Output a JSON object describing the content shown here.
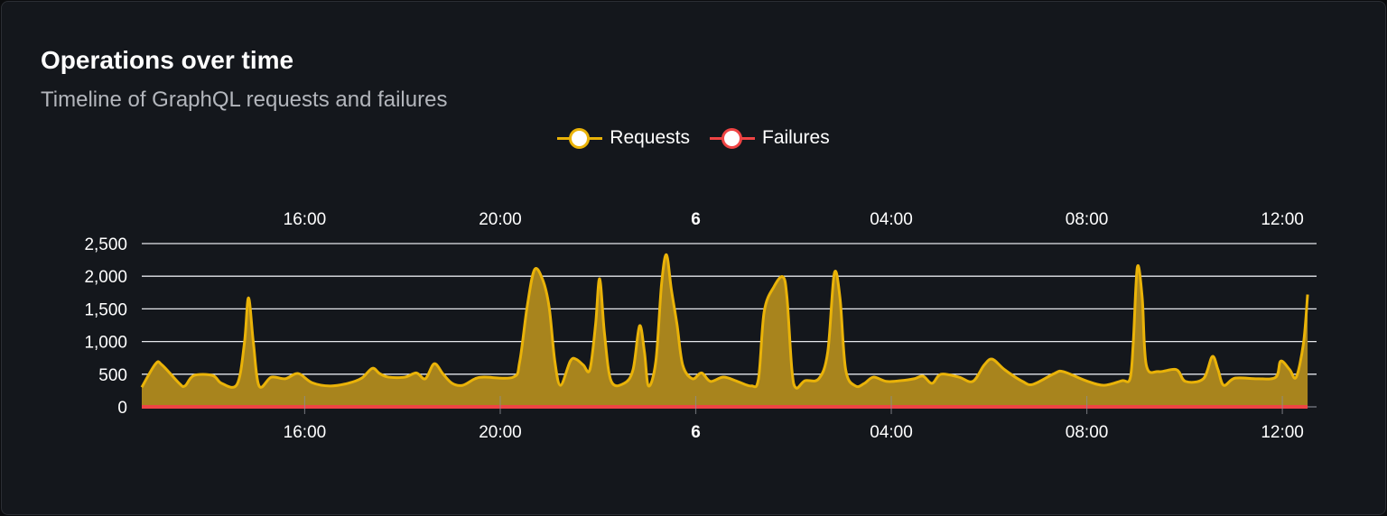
{
  "header": {
    "title": "Operations over time",
    "subtitle": "Timeline of GraphQL requests and failures"
  },
  "chart_data": {
    "type": "area",
    "x_range": [
      "5 12:40",
      "6 12:42"
    ],
    "ylim": [
      0,
      2500
    ],
    "y_ticks": [
      0,
      500,
      1000,
      1500,
      2000,
      2500
    ],
    "y_tick_labels": [
      "0",
      "500",
      "1,000",
      "1,500",
      "2,000",
      "2,500"
    ],
    "x_ticks": [
      {
        "t": "5 16:00",
        "label": "16:00",
        "bold": false
      },
      {
        "t": "5 20:00",
        "label": "20:00",
        "bold": false
      },
      {
        "t": "6 00:00",
        "label": "6",
        "bold": true
      },
      {
        "t": "6 04:00",
        "label": "04:00",
        "bold": false
      },
      {
        "t": "6 08:00",
        "label": "08:00",
        "bold": false
      },
      {
        "t": "6 12:00",
        "label": "12:00",
        "bold": false
      }
    ],
    "grid": true,
    "legend_placement": "top",
    "series": [
      {
        "name": "Requests",
        "color": "#eab308",
        "fill": "#a8841d",
        "points": [
          [
            "5 12:40",
            300
          ],
          [
            "5 12:57",
            660
          ],
          [
            "5 13:05",
            640
          ],
          [
            "5 13:26",
            360
          ],
          [
            "5 13:33",
            320
          ],
          [
            "5 13:44",
            480
          ],
          [
            "5 14:07",
            480
          ],
          [
            "5 14:18",
            360
          ],
          [
            "5 14:37",
            345
          ],
          [
            "5 14:46",
            980
          ],
          [
            "5 14:51",
            1670
          ],
          [
            "5 14:57",
            980
          ],
          [
            "5 15:04",
            320
          ],
          [
            "5 15:19",
            455
          ],
          [
            "5 15:36",
            430
          ],
          [
            "5 15:52",
            510
          ],
          [
            "5 16:09",
            370
          ],
          [
            "5 16:31",
            320
          ],
          [
            "5 16:53",
            360
          ],
          [
            "5 17:10",
            440
          ],
          [
            "5 17:23",
            590
          ],
          [
            "5 17:32",
            510
          ],
          [
            "5 17:43",
            455
          ],
          [
            "5 18:03",
            455
          ],
          [
            "5 18:17",
            520
          ],
          [
            "5 18:28",
            430
          ],
          [
            "5 18:39",
            660
          ],
          [
            "5 18:50",
            500
          ],
          [
            "5 19:01",
            360
          ],
          [
            "5 19:14",
            330
          ],
          [
            "5 19:29",
            430
          ],
          [
            "5 19:40",
            455
          ],
          [
            "5 20:16",
            455
          ],
          [
            "5 20:24",
            700
          ],
          [
            "5 20:33",
            1530
          ],
          [
            "5 20:42",
            2100
          ],
          [
            "5 20:52",
            1950
          ],
          [
            "5 21:00",
            1530
          ],
          [
            "5 21:07",
            700
          ],
          [
            "5 21:14",
            330
          ],
          [
            "5 21:26",
            700
          ],
          [
            "5 21:33",
            730
          ],
          [
            "5 21:42",
            640
          ],
          [
            "5 21:50",
            570
          ],
          [
            "5 21:57",
            1260
          ],
          [
            "5 22:02",
            1960
          ],
          [
            "5 22:08",
            1120
          ],
          [
            "5 22:16",
            400
          ],
          [
            "5 22:32",
            360
          ],
          [
            "5 22:43",
            570
          ],
          [
            "5 22:51",
            1240
          ],
          [
            "5 22:57",
            840
          ],
          [
            "5 23:02",
            320
          ],
          [
            "5 23:11",
            700
          ],
          [
            "5 23:18",
            1880
          ],
          [
            "5 23:24",
            2330
          ],
          [
            "5 23:30",
            1800
          ],
          [
            "5 23:37",
            1260
          ],
          [
            "5 23:44",
            640
          ],
          [
            "5 23:56",
            430
          ],
          [
            "6 00:07",
            520
          ],
          [
            "6 00:18",
            390
          ],
          [
            "6 00:34",
            455
          ],
          [
            "6 00:51",
            390
          ],
          [
            "6 01:08",
            320
          ],
          [
            "6 01:17",
            430
          ],
          [
            "6 01:24",
            1460
          ],
          [
            "6 01:36",
            1840
          ],
          [
            "6 01:47",
            1990
          ],
          [
            "6 01:52",
            1670
          ],
          [
            "6 01:58",
            570
          ],
          [
            "6 02:03",
            290
          ],
          [
            "6 02:14",
            400
          ],
          [
            "6 02:31",
            430
          ],
          [
            "6 02:42",
            840
          ],
          [
            "6 02:50",
            2040
          ],
          [
            "6 02:57",
            1670
          ],
          [
            "6 03:04",
            570
          ],
          [
            "6 03:16",
            320
          ],
          [
            "6 03:27",
            360
          ],
          [
            "6 03:38",
            455
          ],
          [
            "6 03:54",
            390
          ],
          [
            "6 04:11",
            400
          ],
          [
            "6 04:28",
            430
          ],
          [
            "6 04:39",
            470
          ],
          [
            "6 04:50",
            360
          ],
          [
            "6 05:01",
            500
          ],
          [
            "6 05:23",
            455
          ],
          [
            "6 05:40",
            390
          ],
          [
            "6 05:54",
            640
          ],
          [
            "6 06:04",
            730
          ],
          [
            "6 06:19",
            570
          ],
          [
            "6 06:41",
            390
          ],
          [
            "6 06:54",
            345
          ],
          [
            "6 07:20",
            510
          ],
          [
            "6 07:31",
            540
          ],
          [
            "6 07:59",
            400
          ],
          [
            "6 08:21",
            330
          ],
          [
            "6 08:43",
            400
          ],
          [
            "6 08:53",
            430
          ],
          [
            "6 08:57",
            980
          ],
          [
            "6 09:02",
            2140
          ],
          [
            "6 09:08",
            1670
          ],
          [
            "6 09:13",
            640
          ],
          [
            "6 09:28",
            540
          ],
          [
            "6 09:50",
            570
          ],
          [
            "6 10:01",
            390
          ],
          [
            "6 10:23",
            430
          ],
          [
            "6 10:34",
            770
          ],
          [
            "6 10:41",
            570
          ],
          [
            "6 10:48",
            330
          ],
          [
            "6 11:02",
            440
          ],
          [
            "6 11:30",
            430
          ],
          [
            "6 11:52",
            455
          ],
          [
            "6 11:58",
            700
          ],
          [
            "6 12:09",
            570
          ],
          [
            "6 12:17",
            455
          ],
          [
            "6 12:26",
            980
          ],
          [
            "6 12:31",
            1720
          ]
        ]
      },
      {
        "name": "Failures",
        "color": "#ef4444",
        "points": [
          [
            "5 12:40",
            0
          ],
          [
            "6 12:31",
            0
          ]
        ]
      }
    ]
  }
}
